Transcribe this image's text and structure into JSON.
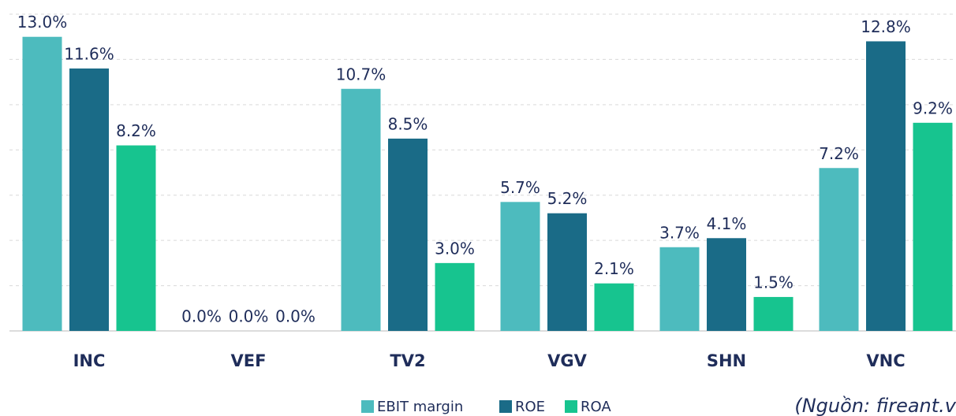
{
  "chart_data": {
    "type": "bar",
    "categories": [
      "INC",
      "VEF",
      "TV2",
      "VGV",
      "SHN",
      "VNC"
    ],
    "series": [
      {
        "name": "EBIT margin",
        "color": "#4dbbbe",
        "values": [
          13.0,
          0.0,
          10.7,
          5.7,
          3.7,
          7.2
        ],
        "value_labels": [
          "13.0%",
          "0.0%",
          "10.7%",
          "5.7%",
          "3.7%",
          "7.2%"
        ]
      },
      {
        "name": "ROE",
        "color": "#1a6b87",
        "values": [
          11.6,
          0.0,
          8.5,
          5.2,
          4.1,
          12.8
        ],
        "value_labels": [
          "11.6%",
          "0.0%",
          "8.5%",
          "5.2%",
          "4.1%",
          "12.8%"
        ]
      },
      {
        "name": "ROA",
        "color": "#17c48f",
        "values": [
          8.2,
          0.0,
          3.0,
          2.1,
          1.5,
          9.2
        ],
        "value_labels": [
          "8.2%",
          "0.0%",
          "3.0%",
          "2.1%",
          "1.5%",
          "9.2%"
        ]
      }
    ],
    "ylim": [
      0,
      14
    ],
    "yticks": [
      0,
      2,
      4,
      6,
      8,
      10,
      12,
      14
    ],
    "grid": true,
    "legend": "bottom",
    "source": "(Nguồn: fireant.v"
  }
}
